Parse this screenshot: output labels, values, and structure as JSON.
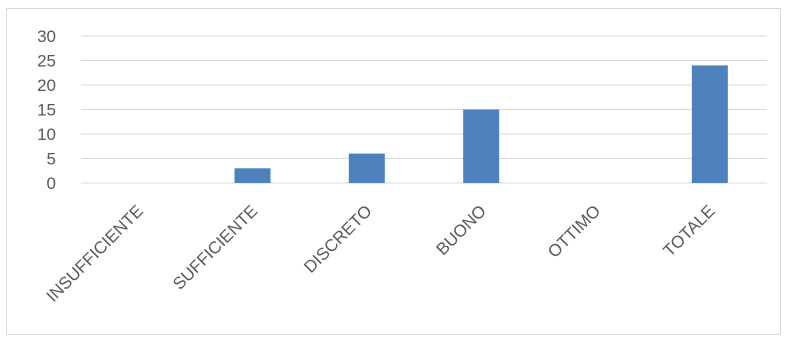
{
  "chart_data": {
    "type": "bar",
    "categories": [
      "INSUFFICIENTE",
      "SUFFICIENTE",
      "DISCRETO",
      "BUONO",
      "OTTIMO",
      "TOTALE"
    ],
    "values": [
      0,
      3,
      6,
      15,
      0,
      24
    ],
    "title": "",
    "xlabel": "",
    "ylabel": "",
    "ylim": [
      0,
      30
    ],
    "yticks": [
      0,
      5,
      10,
      15,
      20,
      25,
      30
    ],
    "grid": true,
    "legend": "none",
    "colors": {
      "bar": "#4f81bd",
      "grid": "#d9d9d9",
      "text": "#595959"
    }
  }
}
